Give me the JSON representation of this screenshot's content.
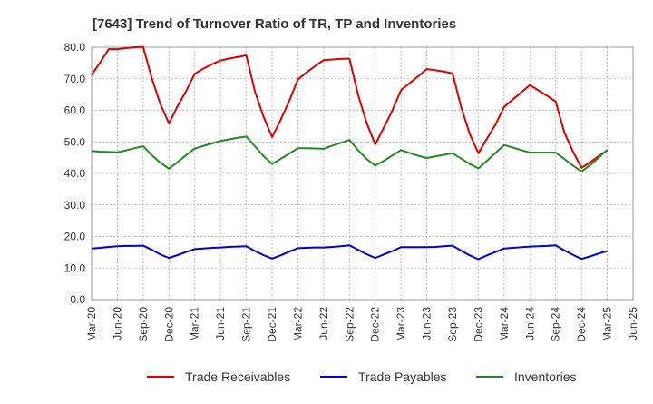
{
  "chart_data": {
    "type": "line",
    "title": "[7643]  Trend of Turnover Ratio of TR, TP and Inventories",
    "xlabel": "",
    "ylabel": "",
    "ylim": [
      0,
      80
    ],
    "yticks": [
      "0.0",
      "10.0",
      "20.0",
      "30.0",
      "40.0",
      "50.0",
      "60.0",
      "70.0",
      "80.0"
    ],
    "xticks": [
      "Mar-20",
      "Jun-20",
      "Sep-20",
      "Dec-20",
      "Mar-21",
      "Jun-21",
      "Sep-21",
      "Dec-21",
      "Mar-22",
      "Jun-22",
      "Sep-22",
      "Dec-22",
      "Mar-23",
      "Jun-23",
      "Sep-23",
      "Dec-23",
      "Mar-24",
      "Jun-24",
      "Sep-24",
      "Dec-24",
      "Mar-25",
      "Jun-25"
    ],
    "grid": true,
    "legend_position": "bottom",
    "x": [
      "Mar-20",
      "Apr-20",
      "May-20",
      "Jun-20",
      "Jul-20",
      "Aug-20",
      "Sep-20",
      "Oct-20",
      "Nov-20",
      "Dec-20",
      "Jan-21",
      "Feb-21",
      "Mar-21",
      "Apr-21",
      "May-21",
      "Jun-21",
      "Jul-21",
      "Aug-21",
      "Sep-21",
      "Oct-21",
      "Nov-21",
      "Dec-21",
      "Jan-22",
      "Feb-22",
      "Mar-22",
      "Apr-22",
      "May-22",
      "Jun-22",
      "Jul-22",
      "Aug-22",
      "Sep-22",
      "Oct-22",
      "Nov-22",
      "Dec-22",
      "Jan-23",
      "Feb-23",
      "Mar-23",
      "Apr-23",
      "May-23",
      "Jun-23",
      "Jul-23",
      "Aug-23",
      "Sep-23",
      "Oct-23",
      "Nov-23",
      "Dec-23",
      "Jan-24",
      "Feb-24",
      "Mar-24",
      "Apr-24",
      "May-24",
      "Jun-24",
      "Jul-24",
      "Aug-24",
      "Sep-24",
      "Oct-24",
      "Nov-24",
      "Dec-24",
      "Jan-25",
      "Feb-25",
      "Mar-25"
    ],
    "series": [
      {
        "name": "Trade Receivables",
        "color": "#dd0000",
        "values": [
          71.2,
          75.2,
          79.4,
          79.4,
          79.7,
          80.0,
          80.1,
          70.2,
          62.0,
          55.8,
          61.3,
          66.1,
          71.6,
          73.2,
          74.6,
          75.8,
          76.4,
          76.9,
          77.4,
          66.0,
          58.0,
          51.5,
          57.0,
          63.0,
          69.8,
          72.0,
          74.0,
          75.9,
          76.1,
          76.3,
          76.4,
          65.0,
          56.0,
          49.2,
          54.5,
          60.0,
          66.4,
          68.6,
          70.8,
          73.1,
          72.7,
          72.3,
          71.7,
          61.0,
          52.5,
          46.4,
          51.0,
          55.5,
          61.1,
          63.4,
          65.7,
          68.0,
          66.3,
          64.6,
          62.8,
          53.0,
          47.0,
          41.8,
          43.5,
          45.5,
          47.3
        ]
      },
      {
        "name": "Trade Payables",
        "color": "#0000dd",
        "values": [
          16.2,
          16.4,
          16.7,
          16.9,
          17.0,
          17.0,
          17.1,
          15.8,
          14.3,
          13.2,
          14.1,
          15.1,
          16.0,
          16.2,
          16.4,
          16.5,
          16.7,
          16.8,
          16.9,
          15.4,
          14.1,
          13.0,
          14.0,
          15.2,
          16.3,
          16.4,
          16.5,
          16.5,
          16.7,
          16.9,
          17.2,
          15.8,
          14.4,
          13.2,
          14.3,
          15.4,
          16.6,
          16.6,
          16.6,
          16.6,
          16.7,
          16.9,
          17.1,
          15.5,
          14.0,
          12.8,
          14.0,
          15.1,
          16.2,
          16.4,
          16.6,
          16.8,
          16.9,
          17.0,
          17.2,
          15.6,
          14.2,
          12.9,
          13.7,
          14.6,
          15.4
        ]
      },
      {
        "name": "Inventories",
        "color": "#228822",
        "values": [
          47.1,
          46.9,
          46.8,
          46.7,
          47.3,
          48.0,
          48.6,
          45.8,
          43.4,
          41.5,
          43.6,
          45.8,
          47.9,
          48.7,
          49.5,
          50.3,
          50.8,
          51.3,
          51.7,
          48.6,
          45.5,
          43.0,
          44.6,
          46.3,
          48.0,
          48.0,
          47.9,
          47.8,
          48.8,
          49.7,
          50.6,
          47.4,
          44.6,
          42.5,
          44.0,
          45.7,
          47.4,
          46.5,
          45.6,
          44.9,
          45.4,
          45.9,
          46.4,
          44.7,
          43.0,
          41.6,
          44.0,
          46.5,
          49.0,
          48.2,
          47.4,
          46.6,
          46.6,
          46.6,
          46.6,
          44.6,
          42.5,
          40.6,
          42.6,
          45.0,
          47.5
        ]
      }
    ]
  }
}
